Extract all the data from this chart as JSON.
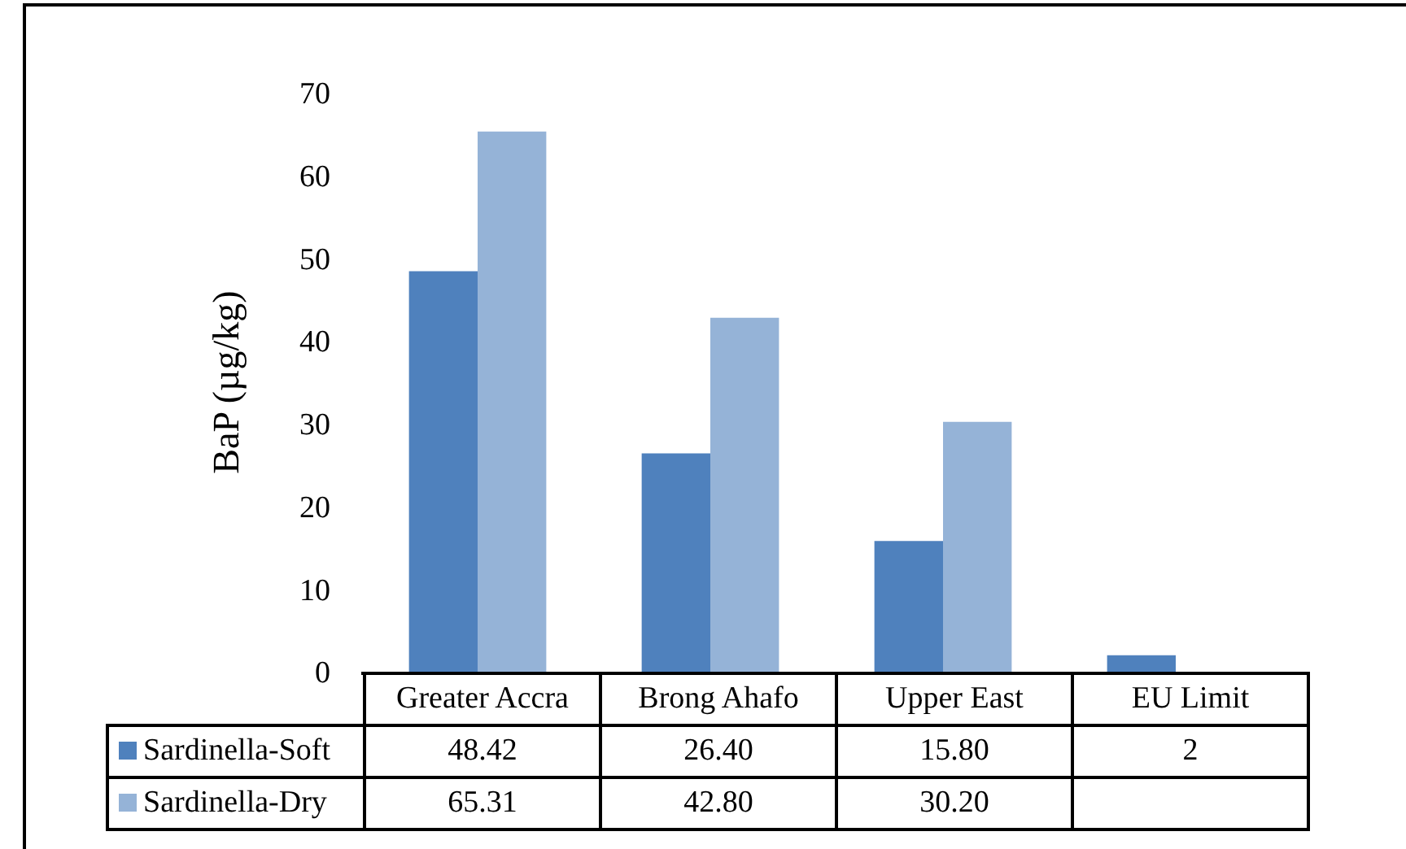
{
  "chart_data": {
    "type": "bar",
    "ylabel": "BaP (µg/kg)",
    "categories": [
      "Greater Accra",
      "Brong Ahafo",
      "Upper East",
      "EU Limit"
    ],
    "series": [
      {
        "name": "Sardinella-Soft",
        "color": "#4f81bd",
        "values": [
          48.42,
          26.4,
          15.8,
          2
        ],
        "value_labels": [
          "48.42",
          "26.40",
          "15.80",
          "2"
        ]
      },
      {
        "name": "Sardinella-Dry",
        "color": "#95b3d7",
        "values": [
          65.31,
          42.8,
          30.2,
          null
        ],
        "value_labels": [
          "65.31",
          "42.80",
          "30.20",
          null
        ]
      }
    ],
    "ylim": [
      0,
      70
    ],
    "yticks": [
      0,
      10,
      20,
      30,
      40,
      50,
      60,
      70
    ],
    "grid": false,
    "legend": "bottom"
  }
}
